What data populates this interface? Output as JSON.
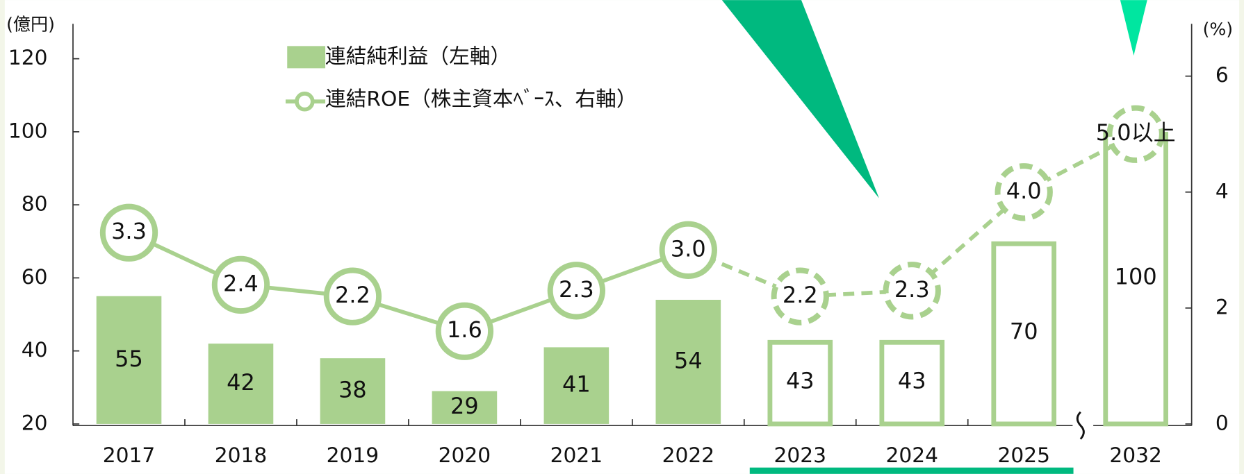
{
  "chart_data": {
    "type": "bar_line",
    "y_axis_label": "(億円)",
    "y2_axis_label": "(%)",
    "categories": [
      "2017",
      "2018",
      "2019",
      "2020",
      "2021",
      "2022",
      "2023",
      "2024",
      "2025",
      "2032"
    ],
    "series": [
      {
        "name": "連結純利益（左軸）",
        "type": "bar",
        "color": "#a9d18e",
        "values": [
          55,
          42,
          38,
          29,
          41,
          54,
          43,
          43,
          70,
          100
        ]
      },
      {
        "name": "連結ROE（株主資本ﾍﾞｰｽ、右軸）",
        "type": "line",
        "axis": "y2",
        "color": "#a9d18e",
        "values": [
          3.3,
          2.4,
          2.2,
          1.6,
          2.3,
          3.0,
          2.2,
          2.3,
          4.0,
          5.0
        ],
        "value_labels": [
          "3.3",
          "2.4",
          "2.2",
          "1.6",
          "2.3",
          "3.0",
          "2.2",
          "2.3",
          "4.0",
          "5.0以上"
        ]
      }
    ],
    "ylim": [
      20,
      120
    ],
    "yticks": [
      20,
      40,
      60,
      80,
      100,
      120
    ],
    "y2lim": [
      0,
      6.3
    ],
    "y2ticks": [
      0,
      2,
      4,
      6
    ]
  }
}
